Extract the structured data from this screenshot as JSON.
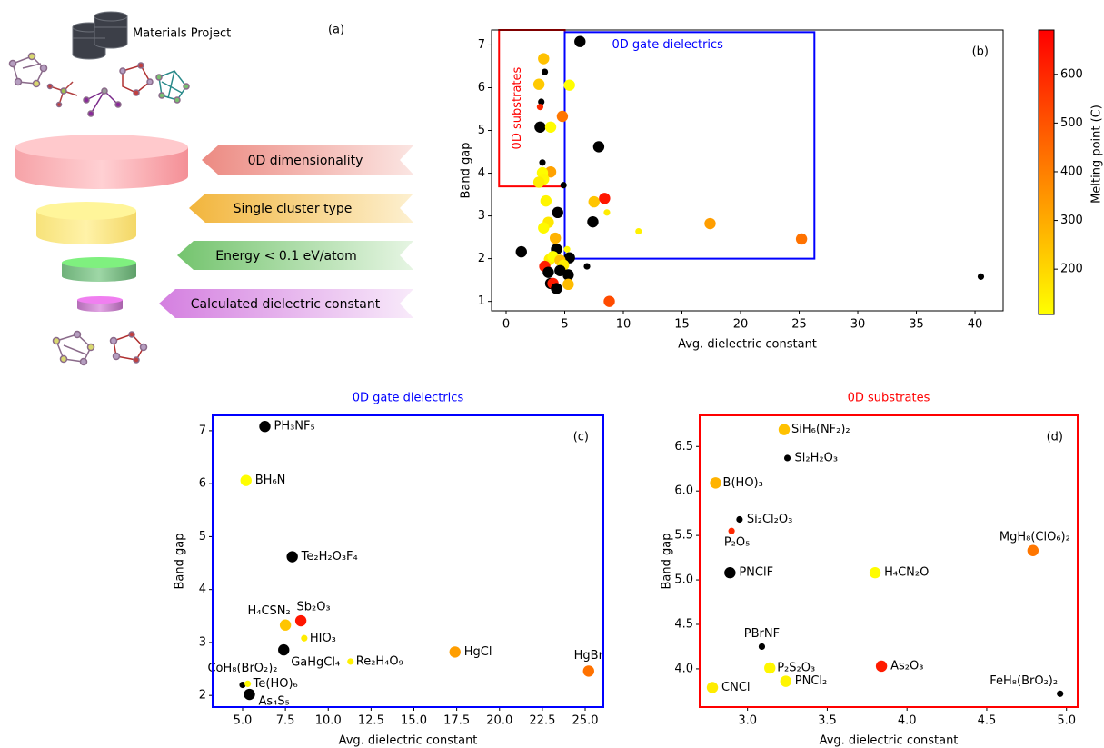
{
  "panel_a": {
    "panel_label": "(a)",
    "source": "Materials Project",
    "filters": [
      "0D dimensionality",
      "Single cluster type",
      "Energy < 0.1 eV/atom",
      "Calculated dielectric constant"
    ]
  },
  "chart_data": [
    {
      "type": "scatter",
      "panel_label": "(b)",
      "xlabel": "Avg. dielectric constant",
      "ylabel": "Band gap",
      "x": [
        6.3,
        3.2,
        3.3,
        2.8,
        5.4,
        3.0,
        2.9,
        4.8,
        2.9,
        3.8,
        7.9,
        3.1,
        3.8,
        3.1,
        3.2,
        2.8,
        4.9,
        7.5,
        8.4,
        3.4,
        8.6,
        4.4,
        7.4,
        3.6,
        3.2,
        11.3,
        17.4,
        4.2,
        25.2,
        1.3,
        4.3,
        5.2,
        5.4,
        3.7,
        4.0,
        4.6,
        3.3,
        4.9,
        3.6,
        4.6,
        6.9,
        5.3,
        5.3,
        3.8,
        4.0,
        4.3,
        8.8,
        40.5
      ],
      "y": [
        7.08,
        6.68,
        6.37,
        6.08,
        6.06,
        5.67,
        5.55,
        5.33,
        5.08,
        5.08,
        4.62,
        4.25,
        4.03,
        4.01,
        3.86,
        3.79,
        3.72,
        3.33,
        3.41,
        3.35,
        3.08,
        3.08,
        2.86,
        2.85,
        2.72,
        2.64,
        2.82,
        2.48,
        2.46,
        2.16,
        2.22,
        2.22,
        2.02,
        1.98,
        2.05,
        1.96,
        1.82,
        1.85,
        1.68,
        1.72,
        1.82,
        1.62,
        1.4,
        1.42,
        1.42,
        1.3,
        1.0,
        1.58
      ],
      "melting_point": [
        null,
        250,
        null,
        230,
        110,
        null,
        600,
        420,
        null,
        115,
        null,
        null,
        320,
        115,
        125,
        150,
        null,
        240,
        640,
        130,
        150,
        null,
        null,
        160,
        120,
        140,
        330,
        280,
        430,
        null,
        null,
        120,
        null,
        150,
        110,
        250,
        620,
        150,
        null,
        null,
        null,
        null,
        260,
        null,
        630,
        null,
        520,
        null
      ],
      "sizes": [
        60,
        60,
        20,
        60,
        60,
        20,
        20,
        60,
        60,
        60,
        60,
        20,
        60,
        60,
        60,
        60,
        20,
        60,
        60,
        60,
        20,
        60,
        60,
        60,
        60,
        20,
        60,
        60,
        60,
        60,
        60,
        20,
        60,
        60,
        60,
        60,
        60,
        60,
        60,
        60,
        20,
        60,
        60,
        60,
        60,
        60,
        60,
        20
      ],
      "xlim": [
        -1.24,
        42.4
      ],
      "ylim": [
        0.78,
        7.35
      ],
      "xticks": [
        0,
        5,
        10,
        15,
        20,
        25,
        30,
        35,
        40
      ],
      "yticks": [
        1,
        2,
        3,
        4,
        5,
        6,
        7
      ],
      "colormap": {
        "min_color": "#ffff00",
        "max_color": "#ff0000",
        "missing_color": "#000000"
      },
      "clim": [
        107,
        691
      ],
      "colorbar": {
        "label": "Melting point (C)",
        "ticks": [
          200,
          300,
          400,
          500,
          600
        ]
      },
      "regions": [
        {
          "label": "0D substrates",
          "color": "#ff0000",
          "x": [
            -0.6,
            5.0
          ],
          "y": [
            3.69,
            7.35
          ]
        },
        {
          "label": "0D gate dielectrics",
          "color": "#0000ff",
          "x": [
            5.0,
            26.3
          ],
          "y": [
            2.0,
            7.3
          ]
        }
      ]
    },
    {
      "type": "scatter",
      "panel_label": "(c)",
      "title": "0D gate dielectrics",
      "title_color": "#0000ff",
      "frame_color": "#0000ff",
      "xlabel": "Avg. dielectric constant",
      "ylabel": "Band gap",
      "labels": [
        "PH₃NF₅",
        "BH₆N",
        "Te₂H₂O₃F₄",
        "H₄CSN₂",
        "Sb₂O₃",
        "HIO₃",
        "GaHgCl₄",
        "Re₂H₄O₉",
        "HgCl",
        "HgBr",
        "CoH₈(BrO₂)₂",
        "Te(HO)₆",
        "As₄S₅"
      ],
      "x": [
        6.3,
        5.2,
        7.9,
        7.5,
        8.4,
        8.6,
        7.4,
        11.3,
        17.4,
        25.2,
        5.0,
        5.3,
        5.4
      ],
      "y": [
        7.08,
        6.06,
        4.62,
        3.33,
        3.41,
        3.08,
        2.86,
        2.64,
        2.82,
        2.46,
        2.2,
        2.22,
        2.02
      ],
      "melting_point": [
        null,
        110,
        null,
        240,
        640,
        150,
        null,
        140,
        330,
        430,
        null,
        120,
        null
      ],
      "sizes": [
        60,
        60,
        60,
        60,
        60,
        20,
        60,
        20,
        60,
        60,
        20,
        20,
        60
      ],
      "xlim": [
        3.25,
        26.06
      ],
      "ylim": [
        1.78,
        7.29
      ],
      "xticks": [
        {
          "value": 5,
          "label": "5.0"
        },
        {
          "value": 7.5,
          "label": "7.5"
        },
        {
          "value": 10,
          "label": "10.0"
        },
        {
          "value": 12.5,
          "label": "12.5"
        },
        {
          "value": 15,
          "label": "15.0"
        },
        {
          "value": 17.5,
          "label": "17.5"
        },
        {
          "value": 20,
          "label": "20.0"
        },
        {
          "value": 22.5,
          "label": "22.5"
        },
        {
          "value": 25,
          "label": "25.0"
        }
      ],
      "yticks": [
        2,
        3,
        4,
        5,
        6,
        7
      ],
      "colormap": {
        "min_color": "#ffff00",
        "max_color": "#ff0000",
        "missing_color": "#000000"
      },
      "clim": [
        107,
        691
      ]
    },
    {
      "type": "scatter",
      "panel_label": "(d)",
      "title": "0D substrates",
      "title_color": "#ff0000",
      "frame_color": "#ff0000",
      "xlabel": "Avg. dielectric constant",
      "ylabel": "Band gap",
      "labels": [
        "SiH₆(NF₂)₂",
        "Si₂H₂O₃",
        "B(HO)₃",
        "Si₂Cl₂O₃",
        "P₂O₅",
        "MgH₈(ClO₆)₂",
        "PNClF",
        "H₄CN₂O",
        "PBrNF",
        "P₂S₂O₃",
        "As₂O₃",
        "PNCl₂",
        "CNCl",
        "FeH₈(BrO₂)₂"
      ],
      "x": [
        3.23,
        3.25,
        2.8,
        2.95,
        2.9,
        4.79,
        2.89,
        3.8,
        3.09,
        3.14,
        3.84,
        3.24,
        2.78,
        4.96
      ],
      "y": [
        6.69,
        6.37,
        6.09,
        5.68,
        5.55,
        5.33,
        5.08,
        5.08,
        4.25,
        4.01,
        4.03,
        3.86,
        3.79,
        3.72
      ],
      "melting_point": [
        250,
        null,
        280,
        null,
        600,
        420,
        null,
        115,
        null,
        125,
        630,
        130,
        150,
        null
      ],
      "sizes": [
        60,
        20,
        60,
        20,
        20,
        60,
        60,
        60,
        20,
        60,
        60,
        60,
        60,
        20
      ],
      "xlim": [
        2.7,
        5.07
      ],
      "ylim": [
        3.57,
        6.85
      ],
      "xticks": [
        {
          "value": 3,
          "label": "3.0"
        },
        {
          "value": 3.5,
          "label": "3.5"
        },
        {
          "value": 4,
          "label": "4.0"
        },
        {
          "value": 4.5,
          "label": "4.5"
        },
        {
          "value": 5,
          "label": "5.0"
        }
      ],
      "yticks": [
        {
          "value": 4,
          "label": "4.0"
        },
        {
          "value": 4.5,
          "label": "4.5"
        },
        {
          "value": 5,
          "label": "5.0"
        },
        {
          "value": 5.5,
          "label": "5.5"
        },
        {
          "value": 6,
          "label": "6.0"
        },
        {
          "value": 6.5,
          "label": "6.5"
        }
      ],
      "colormap": {
        "min_color": "#ffff00",
        "max_color": "#ff0000",
        "missing_color": "#000000"
      },
      "clim": [
        107,
        691
      ]
    }
  ]
}
